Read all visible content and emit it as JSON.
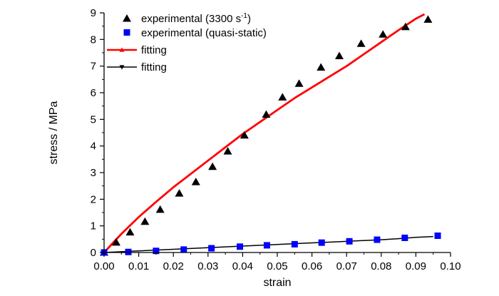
{
  "chart_data": {
    "type": "scatter",
    "xlabel": "strain",
    "ylabel": "stress / MPa",
    "xlim": [
      0.0,
      0.1
    ],
    "ylim": [
      0,
      9
    ],
    "xticks": [
      "0.00",
      "0.01",
      "0.02",
      "0.03",
      "0.04",
      "0.05",
      "0.06",
      "0.07",
      "0.08",
      "0.09",
      "0.10"
    ],
    "yticks": [
      "0",
      "1",
      "2",
      "3",
      "4",
      "5",
      "6",
      "7",
      "8",
      "9"
    ],
    "grid": false,
    "legend_position": "top-left",
    "series": [
      {
        "name": "experimental (3300 s-1)",
        "legend_main": "experimental (3300 s",
        "legend_sup": "-1",
        "legend_end": ")",
        "kind": "scatter",
        "marker": "triangle-up",
        "color": "#000000",
        "x": [
          0.0,
          0.0035,
          0.0075,
          0.0118,
          0.0162,
          0.0217,
          0.0265,
          0.0313,
          0.0357,
          0.0405,
          0.0468,
          0.0515,
          0.0563,
          0.0626,
          0.0679,
          0.0742,
          0.0805,
          0.087,
          0.0935
        ],
        "y": [
          0.0,
          0.38,
          0.76,
          1.16,
          1.61,
          2.22,
          2.65,
          3.22,
          3.8,
          4.4,
          5.18,
          5.83,
          6.34,
          6.95,
          7.38,
          7.84,
          8.19,
          8.47,
          8.75
        ]
      },
      {
        "name": "experimental (quasi-static)",
        "kind": "scatter",
        "marker": "square",
        "color": "#0000ff",
        "x": [
          0.0,
          0.007,
          0.015,
          0.023,
          0.031,
          0.0392,
          0.047,
          0.055,
          0.0628,
          0.0708,
          0.0788,
          0.0868,
          0.0963
        ],
        "y": [
          0.0,
          0.02,
          0.06,
          0.11,
          0.16,
          0.22,
          0.27,
          0.31,
          0.37,
          0.42,
          0.48,
          0.55,
          0.63
        ]
      },
      {
        "name": "fitting",
        "kind": "line",
        "marker": "triangle-up",
        "color": "#ff0000",
        "x": [
          0.0,
          0.005,
          0.01,
          0.015,
          0.02,
          0.025,
          0.03,
          0.035,
          0.04,
          0.045,
          0.05,
          0.055,
          0.06,
          0.065,
          0.07,
          0.075,
          0.08,
          0.085,
          0.09,
          0.0925
        ],
        "y": [
          0.0,
          0.7,
          1.33,
          1.9,
          2.45,
          2.95,
          3.45,
          3.95,
          4.45,
          4.9,
          5.35,
          5.8,
          6.2,
          6.6,
          7.0,
          7.45,
          7.9,
          8.35,
          8.78,
          8.95
        ]
      },
      {
        "name": "fitting",
        "kind": "line",
        "marker": "triangle-down",
        "color": "#000000",
        "x": [
          0.0,
          0.005,
          0.01,
          0.015,
          0.02,
          0.025,
          0.03,
          0.035,
          0.04,
          0.045,
          0.05,
          0.055,
          0.06,
          0.065,
          0.07,
          0.075,
          0.08,
          0.085,
          0.09,
          0.095
        ],
        "y": [
          0.0,
          0.03,
          0.06,
          0.09,
          0.12,
          0.15,
          0.18,
          0.21,
          0.24,
          0.27,
          0.3,
          0.33,
          0.36,
          0.39,
          0.42,
          0.45,
          0.48,
          0.52,
          0.57,
          0.6
        ]
      }
    ]
  }
}
